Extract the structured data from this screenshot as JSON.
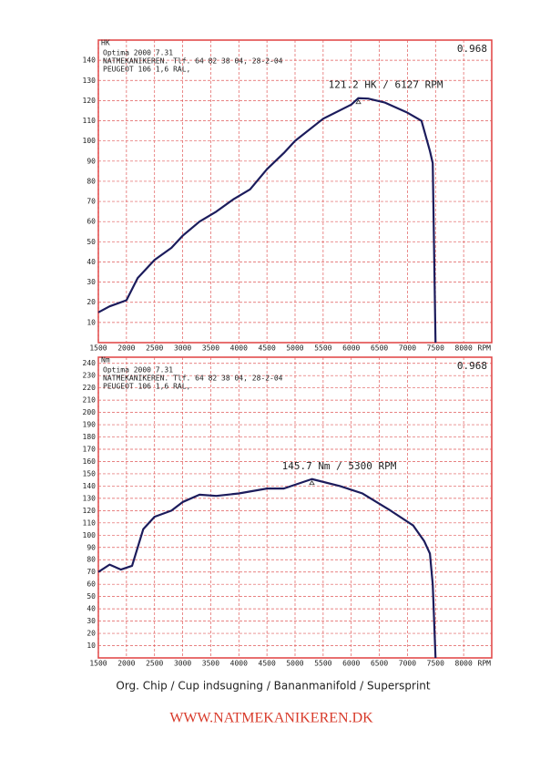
{
  "chart_data": [
    {
      "type": "line",
      "y_label": "HK",
      "x_label": "RPM",
      "header_lines": [
        "Optima 2000 7.31",
        "NATMEKANIKEREN. Tlf. 64 82 38 04, 28-2-04",
        "PEUGEOT 106 1,6 RAL,"
      ],
      "factor": "0.968",
      "annotation": "121.2 HK / 6127 RPM",
      "x": [
        1500,
        1700,
        2000,
        2200,
        2500,
        2800,
        3000,
        3300,
        3600,
        3900,
        4200,
        4500,
        4800,
        5000,
        5500,
        6000,
        6127,
        6300,
        6600,
        7000,
        7250,
        7400,
        7450,
        7500
      ],
      "values": [
        15,
        18,
        21,
        32,
        41,
        47,
        53,
        60,
        65,
        71,
        76,
        86,
        94,
        100,
        111,
        118,
        121.2,
        121,
        119,
        114,
        110,
        95,
        89,
        0
      ],
      "color": "#1c1c5c",
      "xlim": [
        1500,
        8500
      ],
      "xticks": [
        1500,
        2000,
        2500,
        3000,
        3500,
        4000,
        4500,
        5000,
        5500,
        6000,
        6500,
        7000,
        7500,
        8000
      ],
      "ylim": [
        0,
        150
      ],
      "yticks": [
        10,
        20,
        30,
        40,
        50,
        60,
        70,
        80,
        90,
        100,
        110,
        120,
        130,
        140
      ],
      "grid": true
    },
    {
      "type": "line",
      "y_label": "Nm",
      "x_label": "RPM",
      "header_lines": [
        "Optima 2000 7.31",
        "NATMEKANIKEREN. Tlf. 64 82 38 04, 28-2-04",
        "PEUGEOT 106 1,6 RAL,"
      ],
      "factor": "0.968",
      "annotation": "145.7 Nm / 5300 RPM",
      "x": [
        1500,
        1700,
        1900,
        2100,
        2300,
        2500,
        2800,
        3000,
        3300,
        3600,
        4000,
        4500,
        4800,
        5300,
        5800,
        6200,
        6700,
        7100,
        7300,
        7400,
        7450,
        7500
      ],
      "values": [
        70,
        76,
        72,
        75,
        105,
        115,
        120,
        127,
        133,
        132,
        134,
        138,
        138,
        145.7,
        140,
        134,
        120,
        108,
        95,
        85,
        60,
        0
      ],
      "color": "#1c1c5c",
      "xlim": [
        1500,
        8500
      ],
      "xticks": [
        1500,
        2000,
        2500,
        3000,
        3500,
        4000,
        4500,
        5000,
        5500,
        6000,
        6500,
        7000,
        7500,
        8000
      ],
      "ylim": [
        0,
        245
      ],
      "yticks": [
        10,
        20,
        30,
        40,
        50,
        60,
        70,
        80,
        90,
        100,
        110,
        120,
        130,
        140,
        150,
        160,
        170,
        180,
        190,
        200,
        210,
        220,
        230,
        240
      ],
      "grid": true
    }
  ],
  "caption": "Org. Chip / Cup indsugning / Bananmanifold / Supersprint",
  "footer": "WWW.NATMEKANIKEREN.DK"
}
